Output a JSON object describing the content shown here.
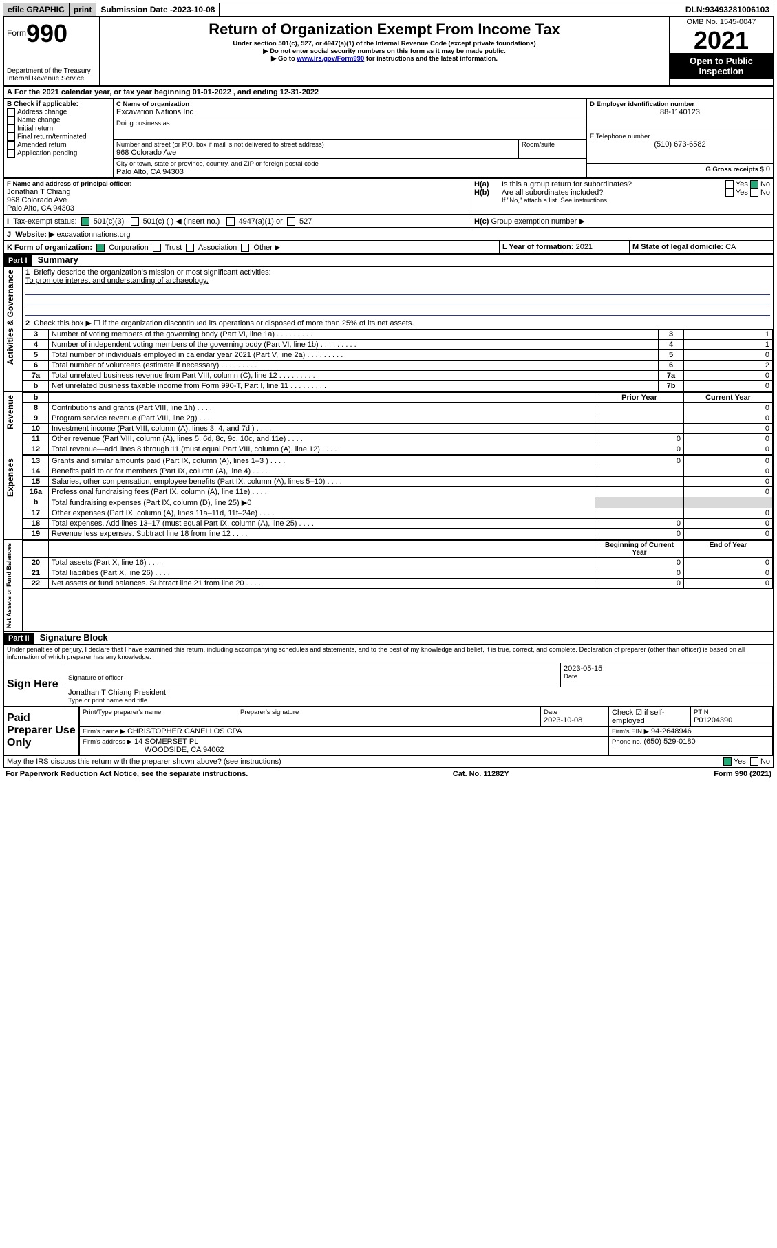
{
  "topbar": {
    "efile": "efile GRAPHIC",
    "print": "print",
    "subdate_label": "Submission Date - ",
    "subdate": "2023-10-08",
    "dln_label": "DLN: ",
    "dln": "93493281006103"
  },
  "header": {
    "form_label": "Form",
    "form_num": "990",
    "dept": "Department of the Treasury",
    "irs": "Internal Revenue Service",
    "title": "Return of Organization Exempt From Income Tax",
    "sub1": "Under section 501(c), 527, or 4947(a)(1) of the Internal Revenue Code (except private foundations)",
    "sub2": "▶ Do not enter social security numbers on this form as it may be made public.",
    "sub3_pre": "▶ Go to ",
    "sub3_link": "www.irs.gov/Form990",
    "sub3_post": " for instructions and the latest information.",
    "omb": "OMB No. 1545-0047",
    "year": "2021",
    "opi": "Open to Public Inspection"
  },
  "A": {
    "text_pre": "For the 2021 calendar year, or tax year beginning ",
    "begin": "01-01-2022",
    "mid": " , and ending ",
    "end": "12-31-2022"
  },
  "B": {
    "label": "B Check if applicable:",
    "items": [
      "Address change",
      "Name change",
      "Initial return",
      "Final return/terminated",
      "Amended return",
      "Application pending"
    ]
  },
  "C": {
    "name_label": "C Name of organization",
    "name": "Excavation Nations Inc",
    "dba_label": "Doing business as",
    "addr_label": "Number and street (or P.O. box if mail is not delivered to street address)",
    "room_label": "Room/suite",
    "addr": "968 Colorado Ave",
    "city_label": "City or town, state or province, country, and ZIP or foreign postal code",
    "city": "Palo Alto, CA  94303"
  },
  "D": {
    "label": "D Employer identification number",
    "val": "88-1140123"
  },
  "E": {
    "label": "E Telephone number",
    "val": "(510) 673-6582"
  },
  "G": {
    "label": "G Gross receipts $",
    "val": "0"
  },
  "F": {
    "label": "F Name and address of principal officer:",
    "name": "Jonathan T Chiang",
    "addr1": "968 Colorado Ave",
    "addr2": "Palo Alto, CA  94303"
  },
  "H": {
    "a": "Is this a group return for subordinates?",
    "b": "Are all subordinates included?",
    "bnote": "If \"No,\" attach a list. See instructions.",
    "c": "Group exemption number ▶",
    "yes": "Yes",
    "no": "No"
  },
  "I": {
    "label": "Tax-exempt status:",
    "o1": "501(c)(3)",
    "o2": "501(c) (  ) ◀ (insert no.)",
    "o3": "4947(a)(1) or",
    "o4": "527"
  },
  "J": {
    "label": "Website: ▶",
    "val": "excavationnations.org"
  },
  "K": {
    "label": "K Form of organization:",
    "o1": "Corporation",
    "o2": "Trust",
    "o3": "Association",
    "o4": "Other ▶"
  },
  "L": {
    "label": "L Year of formation:",
    "val": "2021"
  },
  "M": {
    "label": "M State of legal domicile:",
    "val": "CA"
  },
  "part1": {
    "bar": "Part I",
    "title": "Summary",
    "q1": "Briefly describe the organization's mission or most significant activities:",
    "q1a": "To promote interest and understanding of archaeology.",
    "q2": "Check this box ▶ ☐  if the organization discontinued its operations or disposed of more than 25% of its net assets.",
    "rows_top": [
      {
        "n": "3",
        "t": "Number of voting members of the governing body (Part VI, line 1a)",
        "b": "3",
        "v": "1"
      },
      {
        "n": "4",
        "t": "Number of independent voting members of the governing body (Part VI, line 1b)",
        "b": "4",
        "v": "1"
      },
      {
        "n": "5",
        "t": "Total number of individuals employed in calendar year 2021 (Part V, line 2a)",
        "b": "5",
        "v": "0"
      },
      {
        "n": "6",
        "t": "Total number of volunteers (estimate if necessary)",
        "b": "6",
        "v": "2"
      },
      {
        "n": "7a",
        "t": "Total unrelated business revenue from Part VIII, column (C), line 12",
        "b": "7a",
        "v": "0"
      },
      {
        "n": "b",
        "t": "Net unrelated business taxable income from Form 990-T, Part I, line 11",
        "b": "7b",
        "v": "0"
      }
    ],
    "col_prior": "Prior Year",
    "col_curr": "Current Year",
    "sections": {
      "gov": "Activities & Governance",
      "rev": "Revenue",
      "exp": "Expenses",
      "net": "Net Assets or Fund Balances"
    },
    "rev": [
      {
        "n": "8",
        "t": "Contributions and grants (Part VIII, line 1h)",
        "p": "",
        "c": "0"
      },
      {
        "n": "9",
        "t": "Program service revenue (Part VIII, line 2g)",
        "p": "",
        "c": "0"
      },
      {
        "n": "10",
        "t": "Investment income (Part VIII, column (A), lines 3, 4, and 7d )",
        "p": "",
        "c": "0"
      },
      {
        "n": "11",
        "t": "Other revenue (Part VIII, column (A), lines 5, 6d, 8c, 9c, 10c, and 11e)",
        "p": "0",
        "c": "0"
      },
      {
        "n": "12",
        "t": "Total revenue—add lines 8 through 11 (must equal Part VIII, column (A), line 12)",
        "p": "0",
        "c": "0"
      }
    ],
    "exp": [
      {
        "n": "13",
        "t": "Grants and similar amounts paid (Part IX, column (A), lines 1–3 )",
        "p": "0",
        "c": "0"
      },
      {
        "n": "14",
        "t": "Benefits paid to or for members (Part IX, column (A), line 4)",
        "p": "",
        "c": "0"
      },
      {
        "n": "15",
        "t": "Salaries, other compensation, employee benefits (Part IX, column (A), lines 5–10)",
        "p": "",
        "c": "0"
      },
      {
        "n": "16a",
        "t": "Professional fundraising fees (Part IX, column (A), line 11e)",
        "p": "",
        "c": "0"
      },
      {
        "n": "b",
        "t": "Total fundraising expenses (Part IX, column (D), line 25) ▶0",
        "p": null,
        "c": null
      },
      {
        "n": "17",
        "t": "Other expenses (Part IX, column (A), lines 11a–11d, 11f–24e)",
        "p": "",
        "c": "0"
      },
      {
        "n": "18",
        "t": "Total expenses. Add lines 13–17 (must equal Part IX, column (A), line 25)",
        "p": "0",
        "c": "0"
      },
      {
        "n": "19",
        "t": "Revenue less expenses. Subtract line 18 from line 12",
        "p": "0",
        "c": "0"
      }
    ],
    "col_boy": "Beginning of Current Year",
    "col_eoy": "End of Year",
    "net": [
      {
        "n": "20",
        "t": "Total assets (Part X, line 16)",
        "p": "0",
        "c": "0"
      },
      {
        "n": "21",
        "t": "Total liabilities (Part X, line 26)",
        "p": "0",
        "c": "0"
      },
      {
        "n": "22",
        "t": "Net assets or fund balances. Subtract line 21 from line 20",
        "p": "0",
        "c": "0"
      }
    ]
  },
  "part2": {
    "bar": "Part II",
    "title": "Signature Block",
    "perjury": "Under penalties of perjury, I declare that I have examined this return, including accompanying schedules and statements, and to the best of my knowledge and belief, it is true, correct, and complete. Declaration of preparer (other than officer) is based on all information of which preparer has any knowledge.",
    "sign_here": "Sign Here",
    "sig_officer": "Signature of officer",
    "date": "Date",
    "sig_date": "2023-05-15",
    "officer_name": "Jonathan T Chiang  President",
    "type_name": "Type or print name and title",
    "paid": "Paid Preparer Use Only",
    "pp_name_label": "Print/Type preparer's name",
    "pp_sig_label": "Preparer's signature",
    "pp_date_label": "Date",
    "pp_date": "2023-10-08",
    "pp_check": "Check ☑ if self-employed",
    "ptin_label": "PTIN",
    "ptin": "P01204390",
    "firm_name_label": "Firm's name    ▶",
    "firm_name": "CHRISTOPHER CANELLOS CPA",
    "firm_ein_label": "Firm's EIN ▶",
    "firm_ein": "94-2648946",
    "firm_addr_label": "Firm's address ▶",
    "firm_addr1": "14 SOMERSET PL",
    "firm_addr2": "WOODSIDE, CA  94062",
    "firm_phone_label": "Phone no.",
    "firm_phone": "(650) 529-0180",
    "discuss": "May the IRS discuss this return with the preparer shown above? (see instructions)"
  },
  "footer": {
    "pra": "For Paperwork Reduction Act Notice, see the separate instructions.",
    "cat": "Cat. No. 11282Y",
    "form": "Form 990 (2021)"
  }
}
